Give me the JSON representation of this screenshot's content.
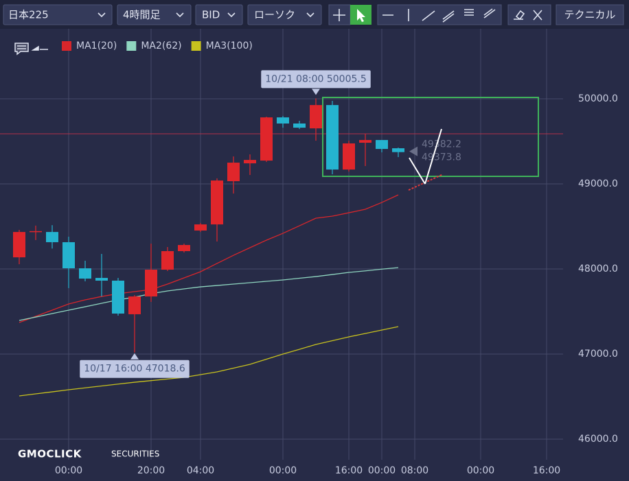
{
  "toolbar": {
    "symbol": "日本225",
    "timeframe": "4時間足",
    "price_type": "BID",
    "chart_style": "ローソク",
    "technical": "テクニカル"
  },
  "branding": {
    "logo": "GMOCLICK",
    "sub": "SECURITIES"
  },
  "chart_data": {
    "type": "candlestick",
    "categories": [
      null,
      null,
      null,
      "00:00",
      null,
      null,
      null,
      null,
      "20:00",
      null,
      null,
      "04:00",
      null,
      null,
      null,
      null,
      "00:00",
      null,
      null,
      null,
      "16:00",
      null,
      "00:00",
      null,
      "08:00",
      null,
      null,
      null,
      "00:00",
      null,
      null,
      null,
      "16:00",
      null
    ],
    "open": [
      48137,
      48440,
      48435,
      48315,
      48008,
      47895,
      47863,
      47468,
      47677,
      47992,
      48210,
      48452,
      48524,
      49032,
      49242,
      49274,
      49782,
      49710,
      49653,
      49927,
      49169,
      49484,
      49516,
      49419,
      null,
      null,
      null,
      null,
      null,
      null,
      null,
      null,
      null,
      null
    ],
    "high": [
      48460,
      48510,
      48515,
      48380,
      48097,
      48177,
      47895,
      47694,
      48298,
      48258,
      48298,
      48540,
      49065,
      49323,
      49347,
      49790,
      49798,
      49742,
      50005.5,
      49976,
      49508,
      49589,
      49516,
      49427,
      null,
      null,
      null,
      null,
      null,
      null,
      null,
      null,
      null,
      null
    ],
    "low": [
      48056,
      48340,
      48240,
      47775,
      47855,
      47677,
      47452,
      47018.6,
      47613,
      47976,
      48194,
      48435,
      48323,
      48887,
      49105,
      49258,
      49661,
      49645,
      49508,
      49113,
      49145,
      49210,
      49371,
      49315,
      null,
      null,
      null,
      null,
      null,
      null,
      null,
      null,
      null,
      null
    ],
    "close": [
      48435,
      48445,
      48315,
      48008,
      47887,
      47863,
      47476,
      47677,
      47992,
      48210,
      48282,
      48524,
      49040,
      49250,
      49282,
      49782,
      49710,
      49661,
      49927,
      49169,
      49476,
      49516,
      49411,
      49373.8,
      null,
      null,
      null,
      null,
      null,
      null,
      null,
      null,
      null,
      null
    ],
    "up_color": "#e0262b",
    "down_color": "#25b3cf",
    "series": [
      {
        "name": "MA1(20)",
        "color": "#d8262b",
        "values": [
          47371,
          47444,
          47516,
          47589,
          47637,
          47677,
          47710,
          47734,
          47758,
          47823,
          47895,
          47968,
          48065,
          48161,
          48250,
          48339,
          48419,
          48508,
          48597,
          48621,
          48661,
          48702,
          48782,
          48871,
          null,
          null,
          null,
          null,
          null,
          null,
          null,
          null,
          null,
          null
        ]
      },
      {
        "name": "MA2(62)",
        "color": "#8fd6c0",
        "values": [
          47395,
          47435,
          47476,
          47516,
          47556,
          47597,
          47637,
          47669,
          47710,
          47742,
          47766,
          47790,
          47806,
          47823,
          47839,
          47855,
          47871,
          47891,
          47911,
          47935,
          47960,
          47978,
          47998,
          48016,
          null,
          null,
          null,
          null,
          null,
          null,
          null,
          null,
          null,
          null
        ]
      },
      {
        "name": "MA3(100)",
        "color": "#c8c21e",
        "values": [
          46508,
          46532,
          46556,
          46581,
          46603,
          46625,
          46647,
          46669,
          46688,
          46707,
          46726,
          46758,
          46790,
          46835,
          46879,
          46940,
          47000,
          47056,
          47113,
          47157,
          47202,
          47242,
          47282,
          47323,
          null,
          null,
          null,
          null,
          null,
          null,
          null,
          null,
          null,
          null
        ]
      }
    ],
    "ylim": [
      45758,
      50823
    ],
    "yticks": [
      {
        "value": 46000,
        "label": "46000.0"
      },
      {
        "value": 47000,
        "label": "47000.0"
      },
      {
        "value": 48000,
        "label": "48000.0"
      },
      {
        "value": 49000,
        "label": "49000.0"
      },
      {
        "value": 50000,
        "label": "50000.0"
      }
    ],
    "grid": true,
    "hline": 49589,
    "hline_color": "#b2314a",
    "high_label": "10/21 08:00 50005.5",
    "low_label": "10/17 16:00 47018.6",
    "price_markers": [
      49382.2,
      49373.8
    ]
  }
}
